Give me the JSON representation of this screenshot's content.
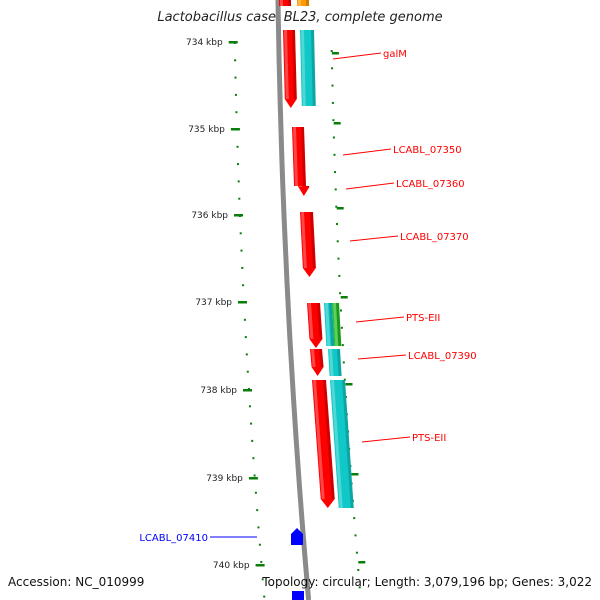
{
  "title": "Lactobacillus casei BL23, complete genome",
  "footer": {
    "accession": "Accession: NC_010999",
    "summary": "Topology: circular; Length: 3,079,196 bp; Genes: 3,022"
  },
  "colors": {
    "forward_gene": "#ff0000",
    "reverse_gene": "#0000ff",
    "cds": "#10c8c8",
    "pts_domain": "#22bb22",
    "orange_feature": "#ff9900",
    "tick": "#0a7d0a",
    "backbone": "#8a8a8a"
  },
  "ruler": [
    {
      "label": "734 kbp"
    },
    {
      "label": "735 kbp"
    },
    {
      "label": "736 kbp"
    },
    {
      "label": "737 kbp"
    },
    {
      "label": "738 kbp"
    },
    {
      "label": "739 kbp"
    },
    {
      "label": "740 kbp"
    }
  ],
  "genes": [
    {
      "label": "galM",
      "strand": "forward"
    },
    {
      "label": "LCABL_07350",
      "strand": "forward"
    },
    {
      "label": "LCABL_07360",
      "strand": "forward"
    },
    {
      "label": "LCABL_07370",
      "strand": "forward"
    },
    {
      "label": "PTS-EII",
      "strand": "forward"
    },
    {
      "label": "LCABL_07390",
      "strand": "forward"
    },
    {
      "label": "PTS-EII",
      "strand": "forward"
    },
    {
      "label": "LCABL_07410",
      "strand": "reverse"
    }
  ]
}
